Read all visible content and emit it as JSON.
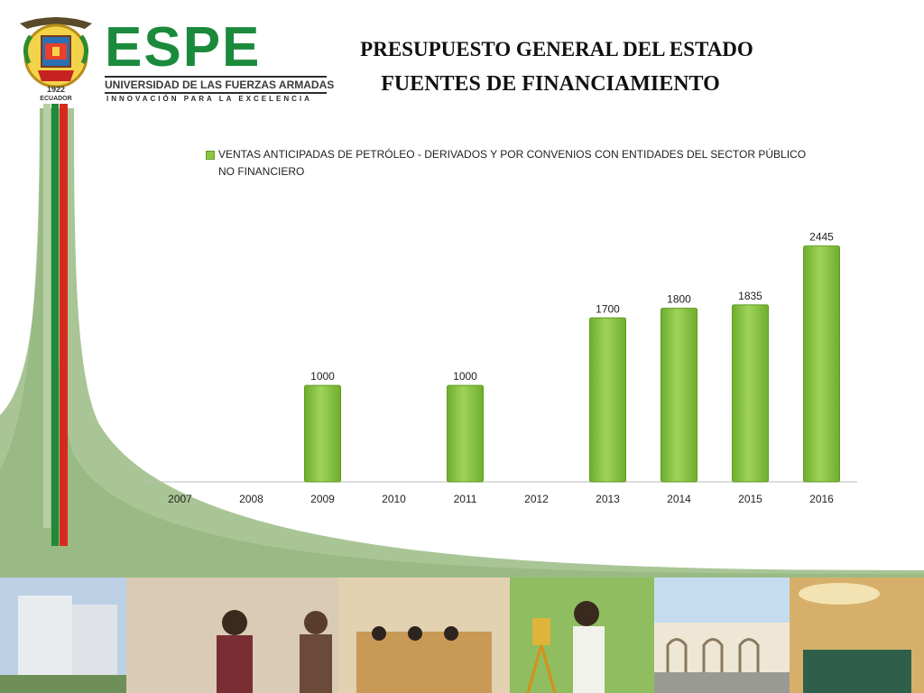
{
  "brand": {
    "name": "ESPE",
    "university": "UNIVERSIDAD DE LAS FUERZAS ARMADAS",
    "motto": "INNOVACIÓN PARA LA EXCELENCIA",
    "emblem_year": "1922",
    "emblem_country": "ECUADOR"
  },
  "slide": {
    "title_line1": "PRESUPUESTO GENERAL DEL ESTADO",
    "title_line2": "FUENTES DE FINANCIAMIENTO"
  },
  "colors": {
    "bar": "#8cc63f",
    "bar_dark": "#5e9a22",
    "brand_green": "#1b8a3c",
    "stripe_red": "#d62a1e",
    "curve_green": "#9bbd82"
  },
  "chart_data": {
    "type": "bar",
    "categories": [
      "2007",
      "2008",
      "2009",
      "2010",
      "2011",
      "2012",
      "2013",
      "2014",
      "2015",
      "2016"
    ],
    "series": [
      {
        "name": "VENTAS ANTICIPADAS DE PETRÓLEO - DERIVADOS Y POR CONVENIOS CON ENTIDADES DEL SECTOR PÚBLICO NO FINANCIERO",
        "values": [
          null,
          null,
          1000,
          null,
          1000,
          null,
          1700,
          1800,
          1835,
          2445
        ]
      }
    ],
    "ylim": [
      0,
      2750
    ],
    "grid": false,
    "legend_position": "top",
    "data_labels": true
  },
  "photo_icons": [
    "building-photo",
    "students-photo",
    "classroom-photo",
    "surveying-photo",
    "campus-photo",
    "library-photo"
  ]
}
